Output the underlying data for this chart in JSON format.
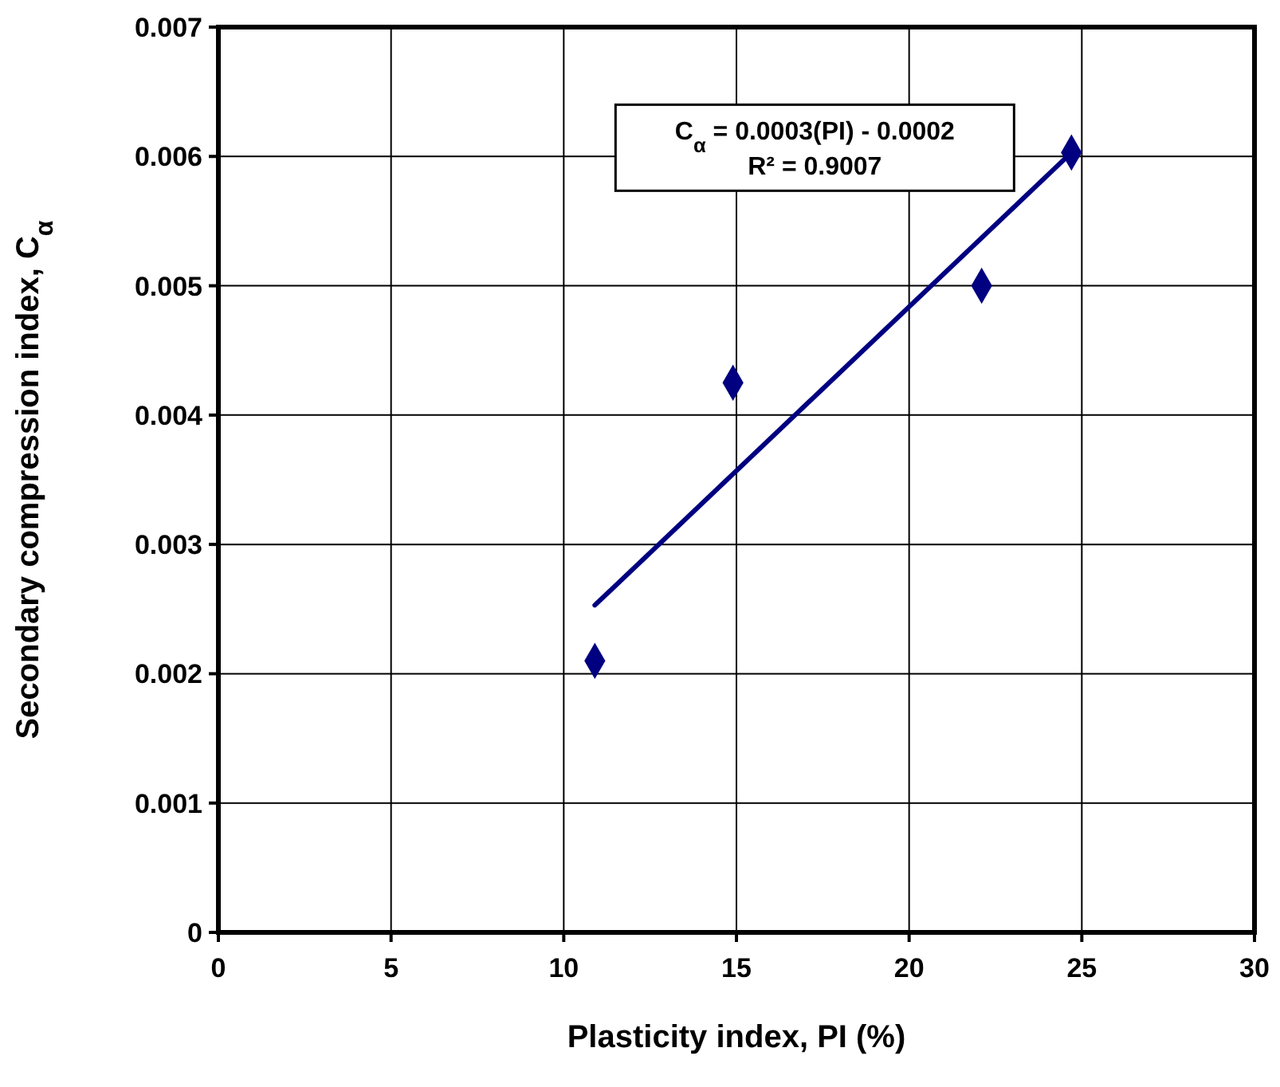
{
  "chart_data": {
    "type": "scatter",
    "xlabel": "Plasticity index, PI (%)",
    "ylabel": "Secondary compression index, C$_{α}$",
    "xlim": [
      0,
      30
    ],
    "xticks": [
      0,
      5,
      10,
      15,
      20,
      25,
      30
    ],
    "ylim": [
      0,
      0.007
    ],
    "yticks": [
      0,
      0.001,
      0.002,
      0.003,
      0.004,
      0.005,
      0.006,
      0.007
    ],
    "grid": true,
    "marker": "diamond",
    "series": [
      {
        "color": "#000080",
        "x": [
          10.9,
          14.9,
          22.1,
          24.7
        ],
        "values": [
          0.0021,
          0.00425,
          0.005,
          0.00603
        ]
      },
      {
        "type": "line",
        "color": "#000080",
        "marker": "none",
        "x": [
          10.9,
          24.7
        ],
        "values": [
          0.00253,
          0.00603
        ]
      }
    ],
    "annotations": [
      "C$_{α}$ = 0.0003(PI) - 0.0002",
      "R² = 0.9007"
    ]
  }
}
